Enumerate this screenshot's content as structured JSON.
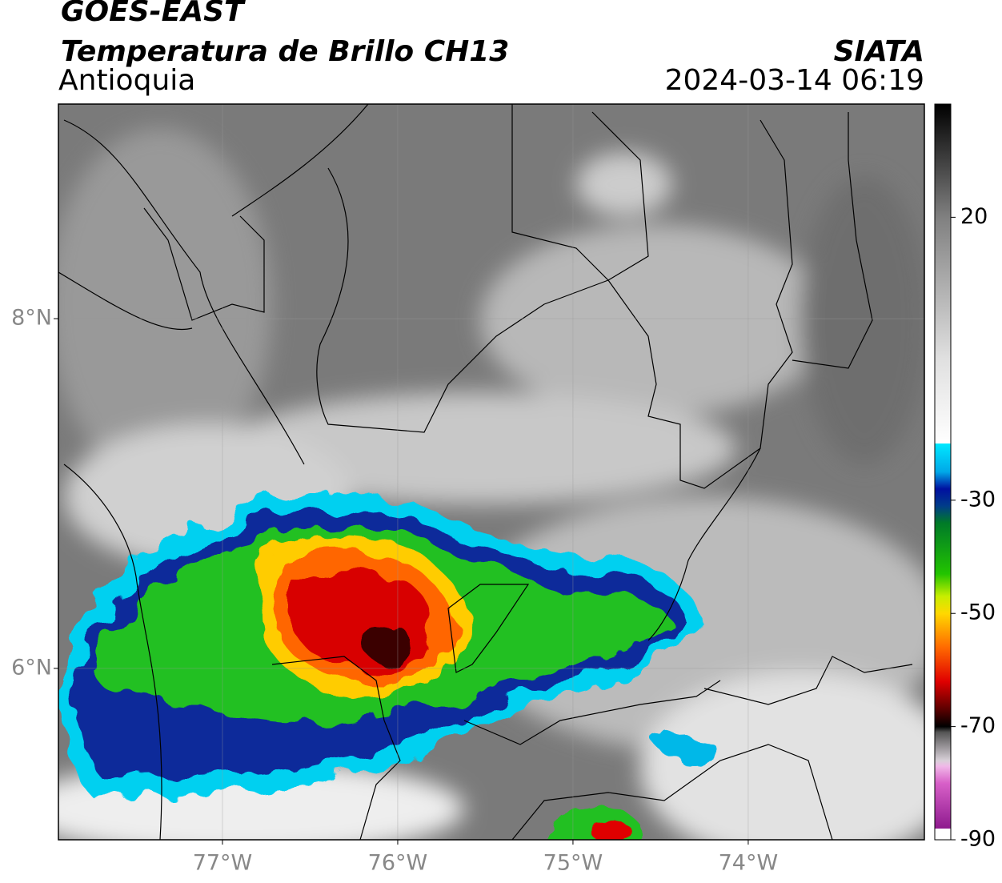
{
  "header": {
    "title": "GOES-EAST",
    "subtitle": "Temperatura de Brillo CH13",
    "region": "Antioquia",
    "org": "SIATA",
    "datetime": "2024-03-14 06:19"
  },
  "map": {
    "xlim": [
      -77.936,
      -72.995
    ],
    "ylim": [
      5.02,
      9.227
    ],
    "xticks": [
      {
        "value": -77,
        "label": "77°W"
      },
      {
        "value": -76,
        "label": "76°W"
      },
      {
        "value": -75,
        "label": "75°W"
      },
      {
        "value": -74,
        "label": "74°W"
      }
    ],
    "yticks": [
      {
        "value": 8,
        "label": "8°N"
      },
      {
        "value": 6,
        "label": "6°N"
      }
    ],
    "grid": true
  },
  "colorbar": {
    "lim": [
      -90,
      40
    ],
    "ticks": [
      20,
      -30,
      -50,
      -70,
      -90
    ],
    "colormap": [
      [
        -90,
        "#ffffff"
      ],
      [
        -88,
        "#ffffff"
      ],
      [
        -88,
        "#8e1a8e"
      ],
      [
        -80,
        "#d860c8"
      ],
      [
        -77,
        "#f0b8e8"
      ],
      [
        -76,
        "#d8d0d8"
      ],
      [
        -71,
        "#555555"
      ],
      [
        -70,
        "#000000"
      ],
      [
        -67,
        "#5a0000"
      ],
      [
        -62,
        "#e00000"
      ],
      [
        -56,
        "#ff6a00"
      ],
      [
        -50,
        "#ffd800"
      ],
      [
        -47,
        "#c8ee00"
      ],
      [
        -43,
        "#22c400"
      ],
      [
        -34,
        "#007a28"
      ],
      [
        -31,
        "#003c8a"
      ],
      [
        -28,
        "#0010a0"
      ],
      [
        -25,
        "#00a8e8"
      ],
      [
        -20,
        "#00e8ff"
      ],
      [
        -20,
        "#ffffff"
      ],
      [
        -5,
        "#e0e0e0"
      ],
      [
        20,
        "#808080"
      ],
      [
        40,
        "#000000"
      ]
    ]
  }
}
